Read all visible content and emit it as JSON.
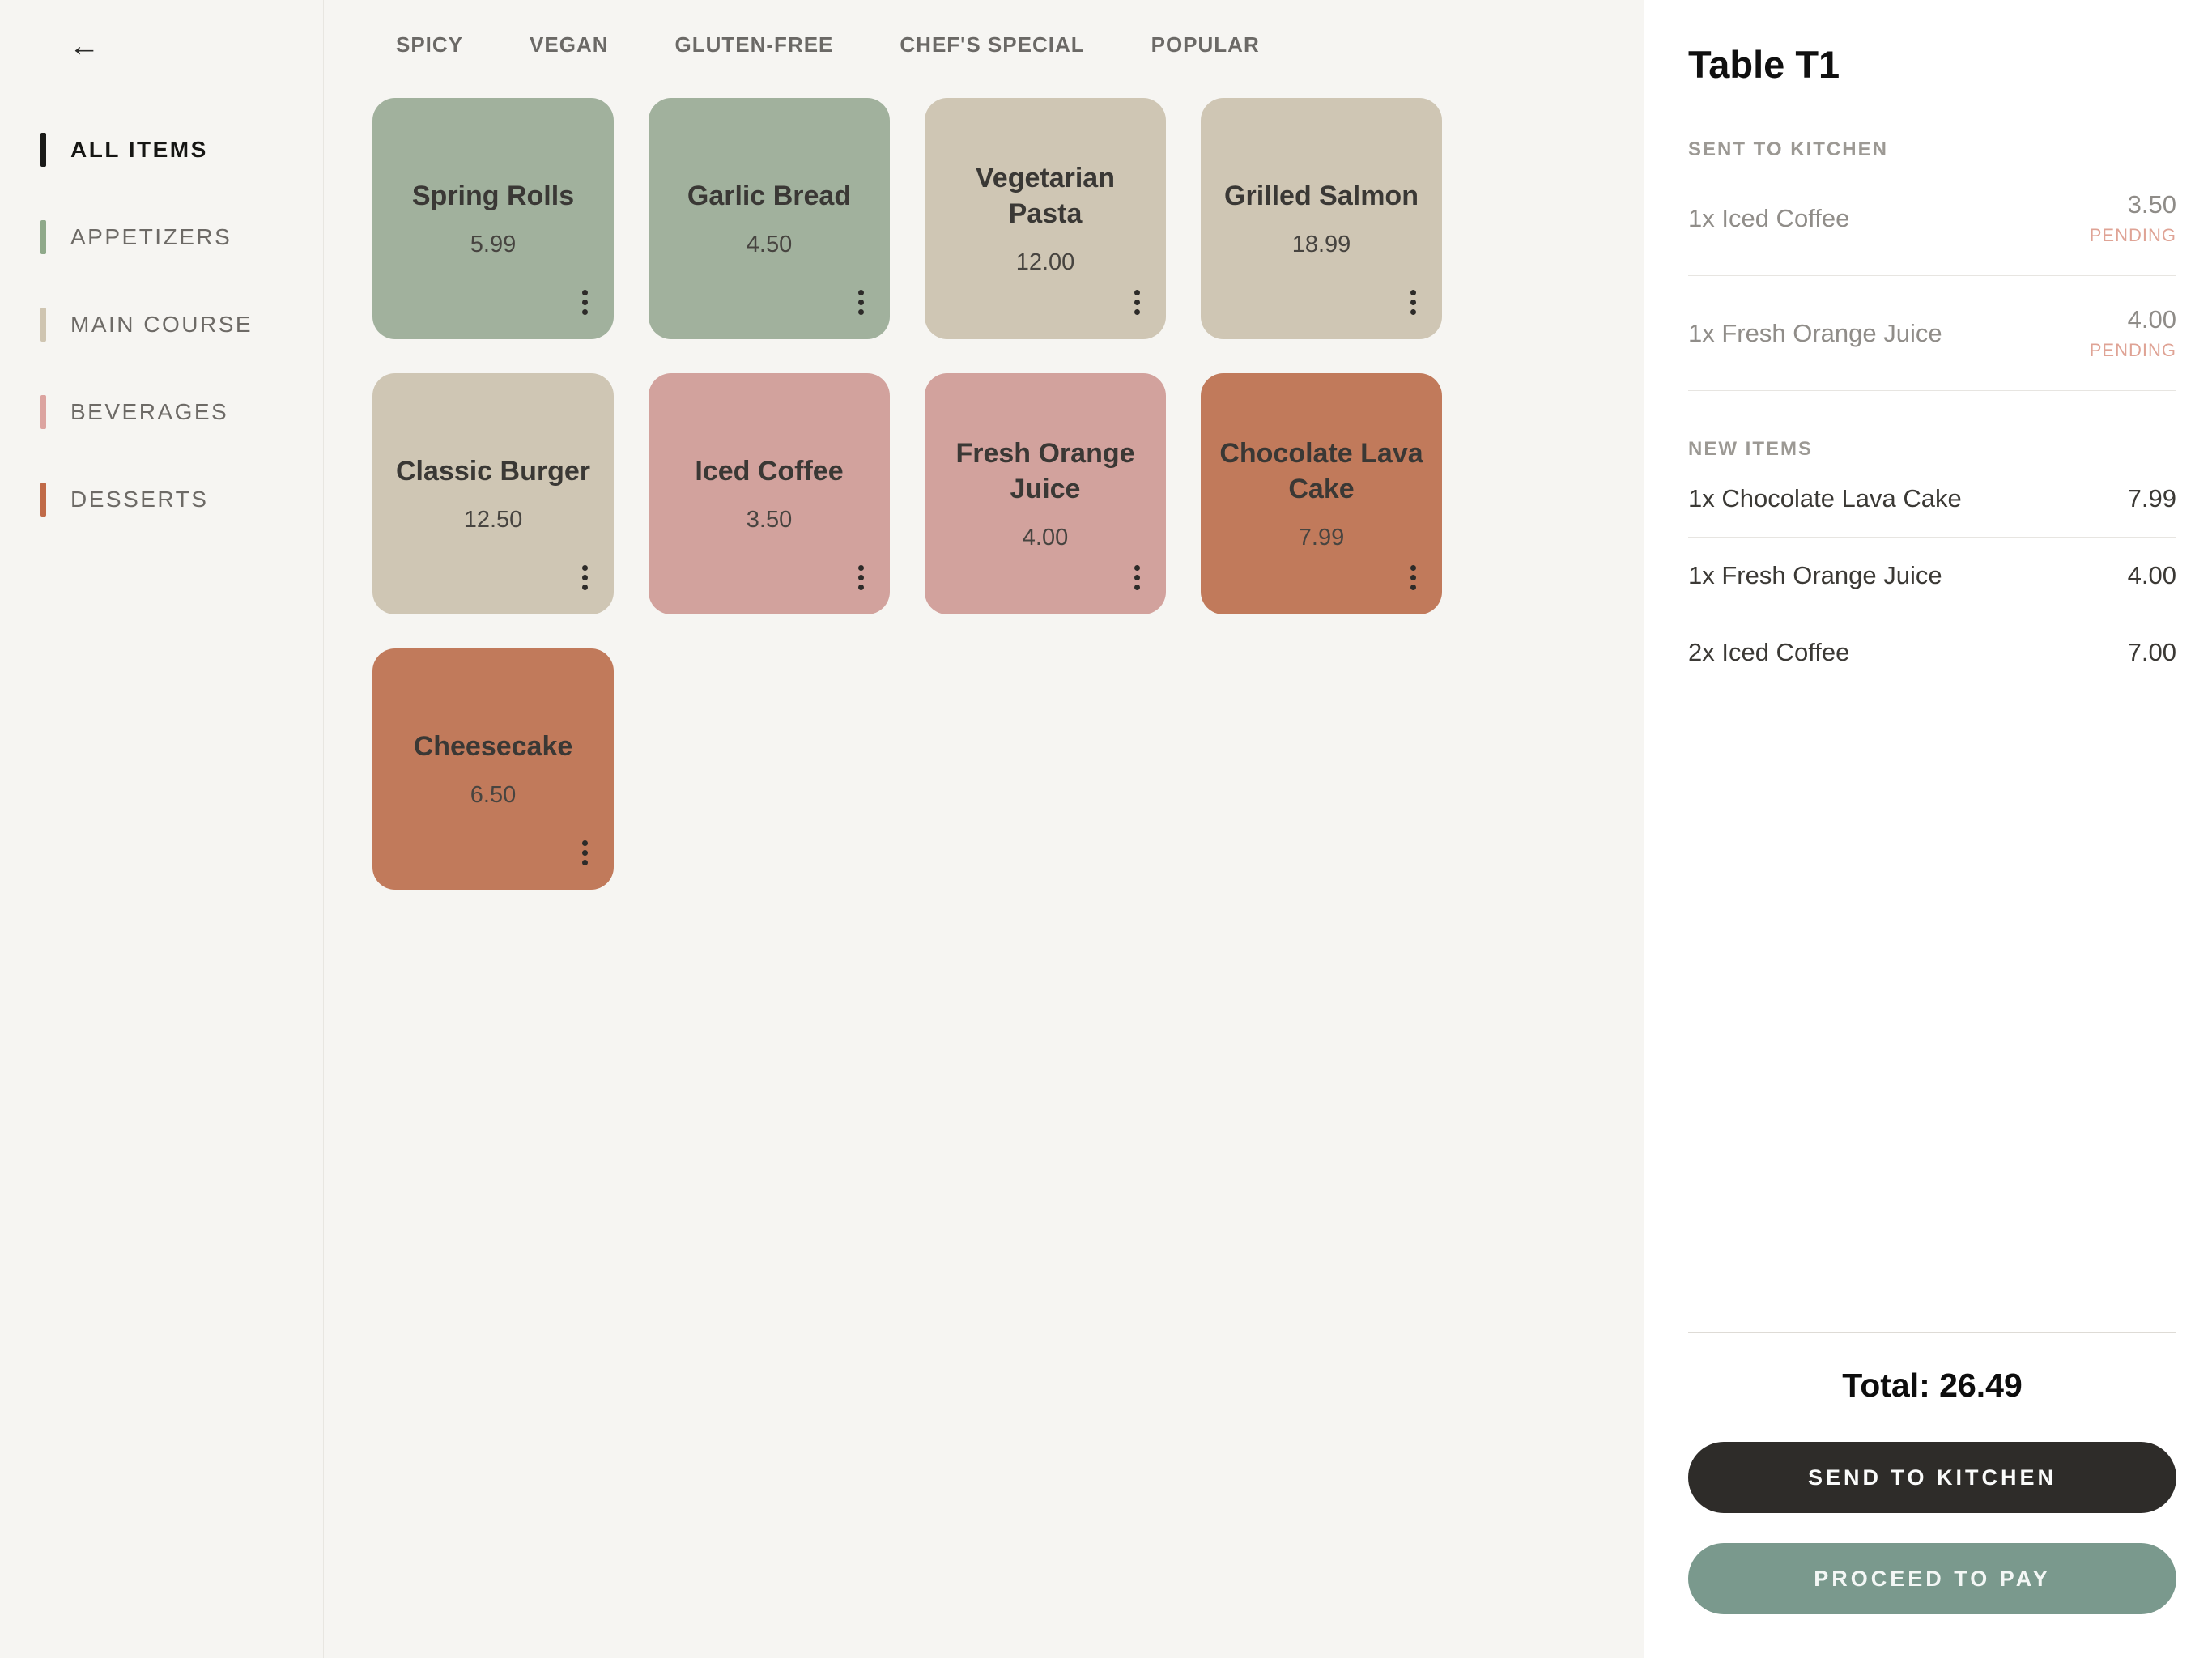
{
  "sidebar": {
    "back_icon": "←",
    "items": [
      {
        "label": "ALL ITEMS",
        "color": "#1a1a18",
        "active": true
      },
      {
        "label": "APPETIZERS",
        "color": "#8fa98a",
        "active": false
      },
      {
        "label": "MAIN COURSE",
        "color": "#cfc5b1",
        "active": false
      },
      {
        "label": "BEVERAGES",
        "color": "#dca4a0",
        "active": false
      },
      {
        "label": "DESSERTS",
        "color": "#c06a48",
        "active": false
      }
    ]
  },
  "tabs": [
    "SPICY",
    "VEGAN",
    "GLUTEN-FREE",
    "CHEF'S SPECIAL",
    "POPULAR"
  ],
  "menu": {
    "items": [
      {
        "name": "Spring Rolls",
        "price": "5.99",
        "color": "#a1b19d"
      },
      {
        "name": "Garlic Bread",
        "price": "4.50",
        "color": "#a1b19d"
      },
      {
        "name": "Vegetarian Pasta",
        "price": "12.00",
        "color": "#cfc6b4"
      },
      {
        "name": "Grilled Salmon",
        "price": "18.99",
        "color": "#cfc6b4"
      },
      {
        "name": "Classic Burger",
        "price": "12.50",
        "color": "#cfc6b4"
      },
      {
        "name": "Iced Coffee",
        "price": "3.50",
        "color": "#d2a29d"
      },
      {
        "name": "Fresh Orange Juice",
        "price": "4.00",
        "color": "#d2a29d"
      },
      {
        "name": "Chocolate Lava Cake",
        "price": "7.99",
        "color": "#c17a5b"
      },
      {
        "name": "Cheesecake",
        "price": "6.50",
        "color": "#c17a5b"
      }
    ]
  },
  "order": {
    "title": "Table T1",
    "sent_section_label": "SENT TO KITCHEN",
    "sent_items": [
      {
        "name": "1x Iced Coffee",
        "price": "3.50",
        "status": "PENDING"
      },
      {
        "name": "1x Fresh Orange Juice",
        "price": "4.00",
        "status": "PENDING"
      }
    ],
    "new_section_label": "NEW ITEMS",
    "new_items": [
      {
        "name": "1x Chocolate Lava Cake",
        "price": "7.99"
      },
      {
        "name": "1x Fresh Orange Juice",
        "price": "4.00"
      },
      {
        "name": "2x Iced Coffee",
        "price": "7.00"
      }
    ],
    "total_label": "Total: 26.49",
    "send_button": "SEND TO KITCHEN",
    "pay_button": "PROCEED TO PAY"
  }
}
